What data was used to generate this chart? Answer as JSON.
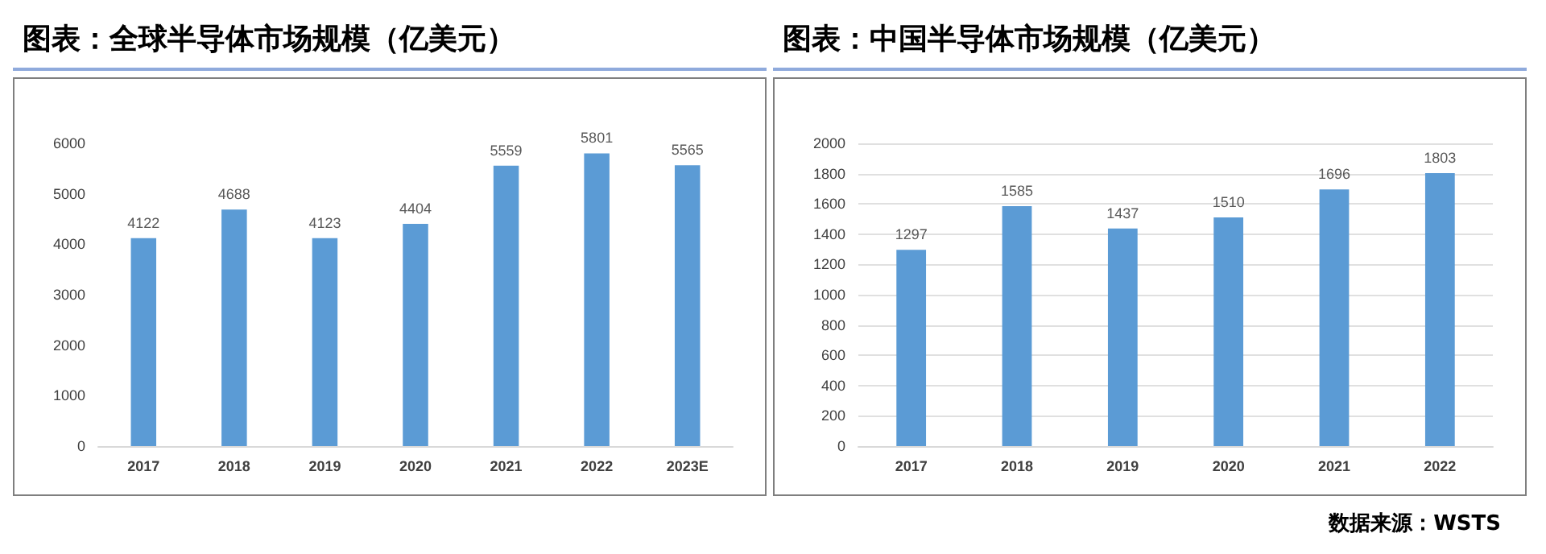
{
  "chart_data": [
    {
      "type": "bar",
      "title": "图表：全球半导体市场规模（亿美元）",
      "categories": [
        "2017",
        "2018",
        "2019",
        "2020",
        "2021",
        "2022",
        "2023E"
      ],
      "values": [
        4122,
        4688,
        4123,
        4404,
        5559,
        5801,
        5565
      ],
      "color": "#5b9bd5",
      "ylim": [
        0,
        6000
      ],
      "yticks": [
        0,
        1000,
        2000,
        3000,
        4000,
        5000,
        6000
      ],
      "data_labels": true
    },
    {
      "type": "bar",
      "title": "图表：中国半导体市场规模（亿美元）",
      "categories": [
        "2017",
        "2018",
        "2019",
        "2020",
        "2021",
        "2022"
      ],
      "values": [
        1297,
        1585,
        1437,
        1510,
        1696,
        1803
      ],
      "color": "#5b9bd5",
      "ylim": [
        0,
        2000
      ],
      "yticks": [
        0,
        200,
        400,
        600,
        800,
        1000,
        1200,
        1400,
        1600,
        1800,
        2000
      ],
      "grid": "y",
      "data_labels": true,
      "annotations": [
        "数据来源：WSTS"
      ]
    }
  ]
}
